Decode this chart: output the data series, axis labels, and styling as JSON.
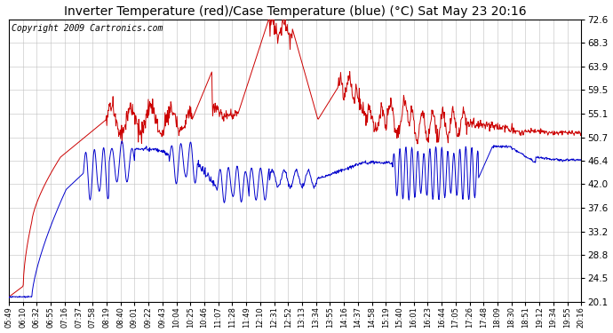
{
  "title": "Inverter Temperature (red)/Case Temperature (blue) (°C) Sat May 23 20:16",
  "copyright": "Copyright 2009 Cartronics.com",
  "yticks": [
    20.1,
    24.5,
    28.8,
    33.2,
    37.6,
    42.0,
    46.4,
    50.7,
    55.1,
    59.5,
    63.9,
    68.3,
    72.6
  ],
  "ylim": [
    20.1,
    72.6
  ],
  "xtick_labels": [
    "05:49",
    "06:10",
    "06:32",
    "06:55",
    "07:16",
    "07:37",
    "07:58",
    "08:19",
    "08:40",
    "09:01",
    "09:22",
    "09:43",
    "10:04",
    "10:25",
    "10:46",
    "11:07",
    "11:28",
    "11:49",
    "12:10",
    "12:31",
    "12:52",
    "13:13",
    "13:34",
    "13:55",
    "14:16",
    "14:37",
    "14:58",
    "15:19",
    "15:40",
    "16:01",
    "16:23",
    "16:44",
    "17:05",
    "17:26",
    "17:48",
    "18:09",
    "18:30",
    "18:51",
    "19:12",
    "19:34",
    "19:55",
    "20:16"
  ],
  "red_color": "#cc0000",
  "blue_color": "#0000cc",
  "bg_color": "#ffffff",
  "grid_color": "#c0c0c0",
  "title_fontsize": 10,
  "copyright_fontsize": 7,
  "fig_width": 6.9,
  "fig_height": 3.75,
  "dpi": 100
}
